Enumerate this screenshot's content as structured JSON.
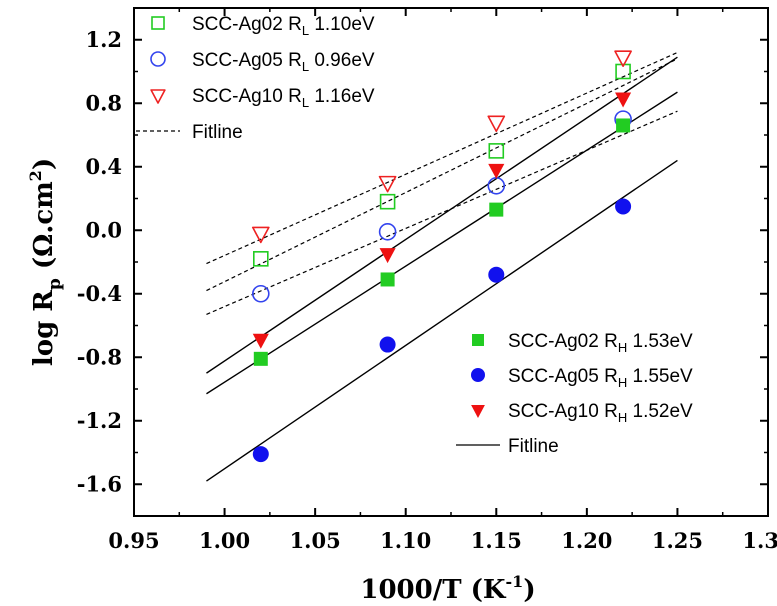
{
  "chart_data": {
    "type": "scatter",
    "xlabel": "1000/T (K",
    "xlabel_sup": "-1",
    "xlabel_tail": ")",
    "ylabel": "log R",
    "ylabel_sub": "p",
    "ylabel_unit": " (Ω.cm",
    "ylabel_sup": "2",
    "ylabel_tail": ")",
    "xlim": [
      0.95,
      1.3
    ],
    "ylim": [
      -1.8,
      1.4
    ],
    "xticks": [
      "0.95",
      "1.00",
      "1.05",
      "1.10",
      "1.15",
      "1.20",
      "1.25",
      "1.30"
    ],
    "yticks": [
      "-1.6",
      "-1.2",
      "-0.8",
      "-0.4",
      "0.0",
      "0.4",
      "0.8",
      "1.2"
    ],
    "grid": false,
    "series": [
      {
        "name": "SCC-Ag02 R",
        "sub": "L",
        "energy": "1.10eV",
        "marker": "square-open",
        "color": "#22cc22",
        "x": [
          1.02,
          1.09,
          1.15,
          1.22
        ],
        "y": [
          -0.18,
          0.18,
          0.5,
          1.0
        ],
        "fit": {
          "x": [
            0.99,
            1.25
          ],
          "y": [
            -0.38,
            1.08
          ],
          "style": "dashed"
        }
      },
      {
        "name": "SCC-Ag05 R",
        "sub": "L",
        "energy": "0.96eV",
        "marker": "circle-open",
        "color": "#3344ee",
        "x": [
          1.02,
          1.09,
          1.15,
          1.22
        ],
        "y": [
          -0.4,
          -0.01,
          0.28,
          0.7
        ],
        "fit": {
          "x": [
            0.99,
            1.25
          ],
          "y": [
            -0.53,
            0.75
          ],
          "style": "dashed"
        }
      },
      {
        "name": "SCC-Ag10 R",
        "sub": "L",
        "energy": "1.16eV",
        "marker": "triangle-down-open",
        "color": "#ee2222",
        "x": [
          1.02,
          1.09,
          1.15,
          1.22
        ],
        "y": [
          -0.02,
          0.3,
          0.68,
          1.09
        ],
        "fit": {
          "x": [
            0.99,
            1.25
          ],
          "y": [
            -0.21,
            1.12
          ],
          "style": "dashed"
        }
      },
      {
        "name": "SCC-Ag02 R",
        "sub": "H",
        "energy": "1.53eV",
        "marker": "square-filled",
        "color": "#22cc22",
        "x": [
          1.02,
          1.09,
          1.15,
          1.22
        ],
        "y": [
          -0.81,
          -0.31,
          0.13,
          0.66
        ],
        "fit": {
          "x": [
            0.99,
            1.25
          ],
          "y": [
            -1.03,
            0.87
          ],
          "style": "solid"
        }
      },
      {
        "name": "SCC-Ag05 R",
        "sub": "H",
        "energy": "1.55eV",
        "marker": "circle-filled",
        "color": "#1111ee",
        "x": [
          1.02,
          1.09,
          1.15,
          1.22
        ],
        "y": [
          -1.41,
          -0.72,
          -0.28,
          0.15
        ],
        "fit": {
          "x": [
            0.99,
            1.25
          ],
          "y": [
            -1.58,
            0.44
          ],
          "style": "solid"
        }
      },
      {
        "name": "SCC-Ag10 R",
        "sub": "H",
        "energy": "1.52eV",
        "marker": "triangle-down-filled",
        "color": "#ee1111",
        "x": [
          1.02,
          1.09,
          1.15,
          1.22
        ],
        "y": [
          -0.69,
          -0.15,
          0.38,
          0.83
        ],
        "fit": {
          "x": [
            0.99,
            1.25
          ],
          "y": [
            -0.9,
            1.09
          ],
          "style": "solid"
        }
      }
    ],
    "legends": [
      {
        "placement": "top-left",
        "entries": [
          0,
          1,
          2
        ],
        "fit_label": "Fitline",
        "fit_style": "dashed"
      },
      {
        "placement": "bottom-right",
        "entries": [
          3,
          4,
          5
        ],
        "fit_label": "Fitline",
        "fit_style": "solid"
      }
    ]
  }
}
